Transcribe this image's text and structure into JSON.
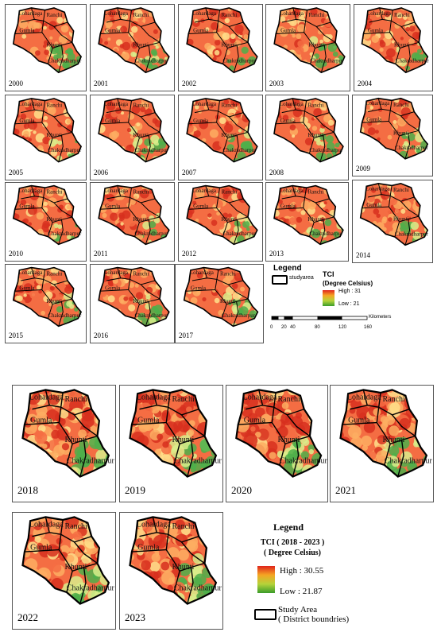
{
  "colors": {
    "high": "#d7301f",
    "mid_hi": "#f46d43",
    "mid": "#fdae61",
    "mid_lo": "#fee08b",
    "lo_mid": "#d9ef8b",
    "low": "#4daf4a"
  },
  "districts": [
    "Lohardaga",
    "Ranchi",
    "Gumla",
    "Khunti",
    "Chakradharpur"
  ],
  "top_panels": [
    {
      "year": "2000"
    },
    {
      "year": "2001"
    },
    {
      "year": "2002"
    },
    {
      "year": "2003"
    },
    {
      "year": "2004"
    },
    {
      "year": "2005"
    },
    {
      "year": "2006"
    },
    {
      "year": "2007"
    },
    {
      "year": "2008"
    },
    {
      "year": "2009"
    },
    {
      "year": "2010"
    },
    {
      "year": "2011"
    },
    {
      "year": "2012"
    },
    {
      "year": "2013"
    },
    {
      "year": "2014"
    },
    {
      "year": "2015"
    },
    {
      "year": "2016"
    },
    {
      "year": "2017"
    }
  ],
  "bottom_panels": [
    {
      "year": "2018"
    },
    {
      "year": "2019"
    },
    {
      "year": "2020"
    },
    {
      "year": "2021"
    },
    {
      "year": "2022"
    },
    {
      "year": "2023"
    }
  ],
  "legend1": {
    "title": "Legend",
    "studyarea": "studyarea",
    "tci_title": "TCI",
    "tci_unit": "(Degree Celsius)",
    "high": "High : 31",
    "low": "Low : 21",
    "scale_ticks": [
      "0",
      "20",
      "40",
      "80",
      "120",
      "160"
    ],
    "scale_unit": "Kilometers"
  },
  "legend2": {
    "title": "Legend",
    "tci_title": "TCI ( 2018 - 2023 )",
    "tci_unit": "( Degree Celsius)",
    "high": "High : 30.55",
    "low": "Low : 21.87",
    "study_area": "Study Area",
    "study_area_sub": "( District boundries)"
  }
}
